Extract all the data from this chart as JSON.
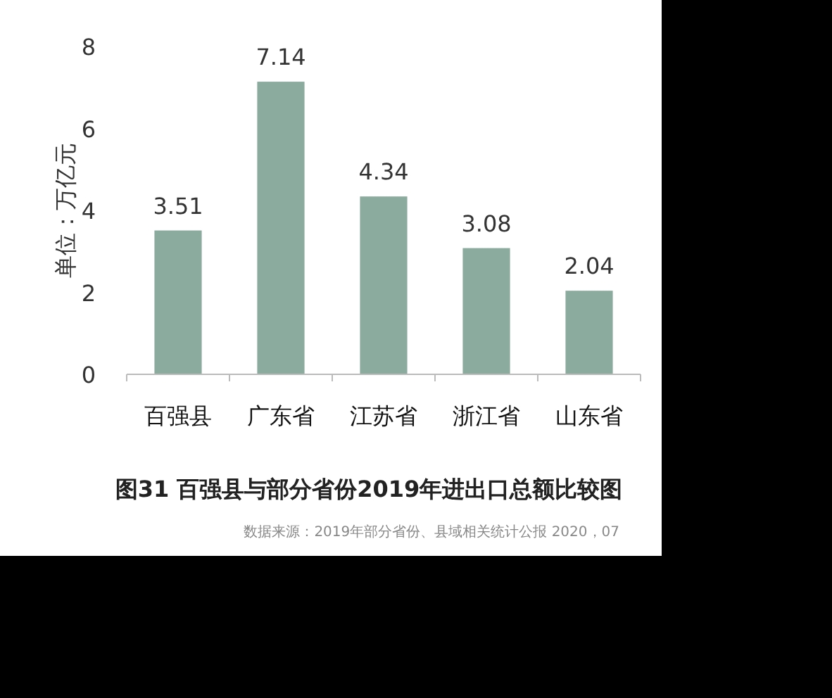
{
  "chart_data": {
    "type": "bar",
    "title": "图31 百强县与部分省份2019年进出口总额比较图",
    "ylabel": "单位：万亿元",
    "categories": [
      "百强县",
      "广东省",
      "江苏省",
      "浙江省",
      "山东省"
    ],
    "values": [
      3.51,
      7.14,
      4.34,
      3.08,
      2.04
    ],
    "color": "#8aab9e",
    "ylim": [
      0,
      8
    ],
    "yticks": [
      0,
      2,
      4,
      6,
      8
    ],
    "data_labels": true,
    "annotations": [
      "数据来源：2019年部分省份、县域相关统计公报 2020，07"
    ]
  }
}
